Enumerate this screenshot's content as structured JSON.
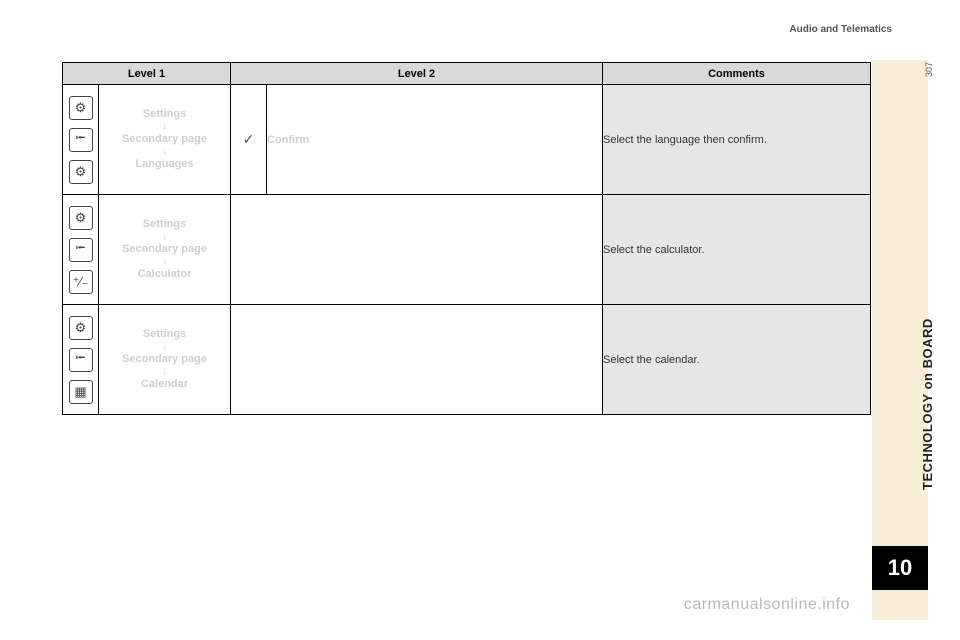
{
  "header": {
    "section": "Audio and Telematics"
  },
  "sidebar": {
    "vertical_label": "TECHNOLOGY on BOARD",
    "chapter_number": "10",
    "page_number": "307"
  },
  "watermark": "carmanualsonline.info",
  "table": {
    "headers": {
      "level1": "Level 1",
      "level2": "Level 2",
      "comments": "Comments"
    },
    "rows": [
      {
        "icons": [
          "gear",
          "import",
          "gears"
        ],
        "path": {
          "a": "Settings",
          "b": "Secondary page",
          "c": "Languages"
        },
        "level2": {
          "has_icon": true,
          "text": "Confirm"
        },
        "comment": "Select the language then confirm."
      },
      {
        "icons": [
          "gear",
          "import",
          "calc"
        ],
        "path": {
          "a": "Settings",
          "b": "Secondary page",
          "c": "Calculator"
        },
        "level2": {
          "has_icon": false,
          "text": ""
        },
        "comment": "Select the calculator."
      },
      {
        "icons": [
          "gear",
          "import",
          "calendar"
        ],
        "path": {
          "a": "Settings",
          "b": "Secondary page",
          "c": "Calendar"
        },
        "level2": {
          "has_icon": false,
          "text": ""
        },
        "comment": "Select the calendar."
      }
    ]
  },
  "icon_glyphs": {
    "gear": "⚙",
    "import": "⭰",
    "gears": "⚙",
    "calc": "⁺⁄₋",
    "calendar": "▦",
    "check": "✓",
    "arrow_down": "↓"
  },
  "colors": {
    "header_bg": "#d9d9d9",
    "comment_bg": "#e6e6e6",
    "ghost_text": "#cfcfcf",
    "cream": "#f6eed7",
    "black": "#000000"
  }
}
